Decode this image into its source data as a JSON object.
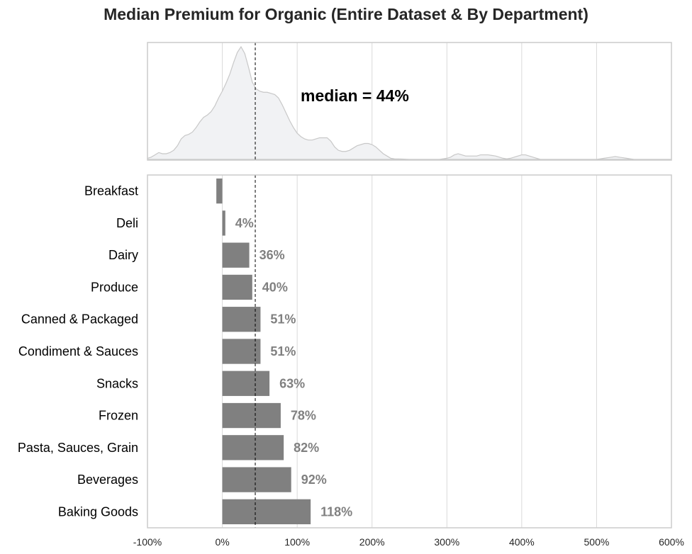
{
  "title": "Median Premium for Organic (Entire Dataset & By Department)",
  "chart_data": {
    "type": "bar",
    "orientation": "horizontal",
    "title": "Median Premium for Organic (Entire Dataset & By Department)",
    "xlabel": "",
    "ylabel": "",
    "xlim": [
      -100,
      600
    ],
    "x_ticks": [
      -100,
      0,
      100,
      200,
      300,
      400,
      500,
      600
    ],
    "x_tick_labels": [
      "-100%",
      "0%",
      "100%",
      "200%",
      "300%",
      "400%",
      "500%",
      "600%"
    ],
    "grid": "vertical",
    "categories": [
      "Breakfast",
      "Deli",
      "Dairy",
      "Produce",
      "Canned & Packaged",
      "Condiment & Sauces",
      "Snacks",
      "Frozen",
      "Pasta, Sauces, Grain",
      "Beverages",
      "Baking Goods"
    ],
    "values": [
      -8,
      4,
      36,
      40,
      51,
      51,
      63,
      78,
      82,
      92,
      118
    ],
    "value_labels": [
      "",
      "4%",
      "36%",
      "40%",
      "51%",
      "51%",
      "63%",
      "78%",
      "82%",
      "92%",
      "118%"
    ],
    "bar_color": "#808080",
    "label_color": "#808080",
    "median": 44,
    "median_label": "median = 44%",
    "density": {
      "type": "area",
      "fill": "#f1f2f4",
      "stroke": "#c8c8c8",
      "x": [
        -100,
        -95,
        -90,
        -85,
        -80,
        -75,
        -70,
        -65,
        -60,
        -55,
        -50,
        -45,
        -40,
        -35,
        -30,
        -25,
        -20,
        -15,
        -10,
        -5,
        0,
        5,
        10,
        15,
        20,
        25,
        30,
        35,
        40,
        45,
        50,
        55,
        60,
        65,
        70,
        75,
        80,
        85,
        90,
        95,
        100,
        105,
        110,
        115,
        120,
        125,
        130,
        135,
        140,
        145,
        150,
        155,
        160,
        165,
        170,
        175,
        180,
        185,
        190,
        195,
        200,
        205,
        210,
        215,
        220,
        225,
        230,
        240,
        250,
        260,
        270,
        280,
        290,
        300,
        305,
        310,
        315,
        320,
        325,
        330,
        335,
        340,
        345,
        350,
        355,
        360,
        365,
        370,
        375,
        380,
        385,
        390,
        395,
        400,
        405,
        410,
        415,
        420,
        425,
        430,
        440,
        450,
        460,
        470,
        480,
        490,
        500,
        505,
        510,
        515,
        520,
        525,
        530,
        535,
        540,
        545,
        550,
        560,
        570,
        580,
        590,
        600
      ],
      "y": [
        0.01,
        0.02,
        0.04,
        0.06,
        0.05,
        0.05,
        0.06,
        0.08,
        0.12,
        0.18,
        0.21,
        0.22,
        0.24,
        0.28,
        0.33,
        0.37,
        0.39,
        0.42,
        0.47,
        0.54,
        0.6,
        0.67,
        0.75,
        0.85,
        0.94,
        0.99,
        0.93,
        0.81,
        0.68,
        0.62,
        0.6,
        0.59,
        0.59,
        0.58,
        0.57,
        0.54,
        0.48,
        0.41,
        0.34,
        0.28,
        0.23,
        0.2,
        0.18,
        0.17,
        0.17,
        0.18,
        0.19,
        0.19,
        0.19,
        0.16,
        0.11,
        0.08,
        0.07,
        0.07,
        0.08,
        0.1,
        0.12,
        0.13,
        0.14,
        0.14,
        0.13,
        0.11,
        0.08,
        0.05,
        0.03,
        0.01,
        0.005,
        0.003,
        0.0,
        0.0,
        0.0,
        0.0,
        0.0,
        0.01,
        0.02,
        0.04,
        0.05,
        0.04,
        0.03,
        0.03,
        0.03,
        0.03,
        0.04,
        0.04,
        0.04,
        0.035,
        0.03,
        0.02,
        0.01,
        0.005,
        0.01,
        0.02,
        0.03,
        0.04,
        0.04,
        0.03,
        0.02,
        0.01,
        0.0,
        0.0,
        0.0,
        0.0,
        0.0,
        0.0,
        0.0,
        0.0,
        0.0,
        0.005,
        0.01,
        0.015,
        0.02,
        0.025,
        0.02,
        0.015,
        0.01,
        0.005,
        0.0,
        0.0,
        0.0,
        0.0,
        0.0,
        0.0
      ]
    }
  }
}
